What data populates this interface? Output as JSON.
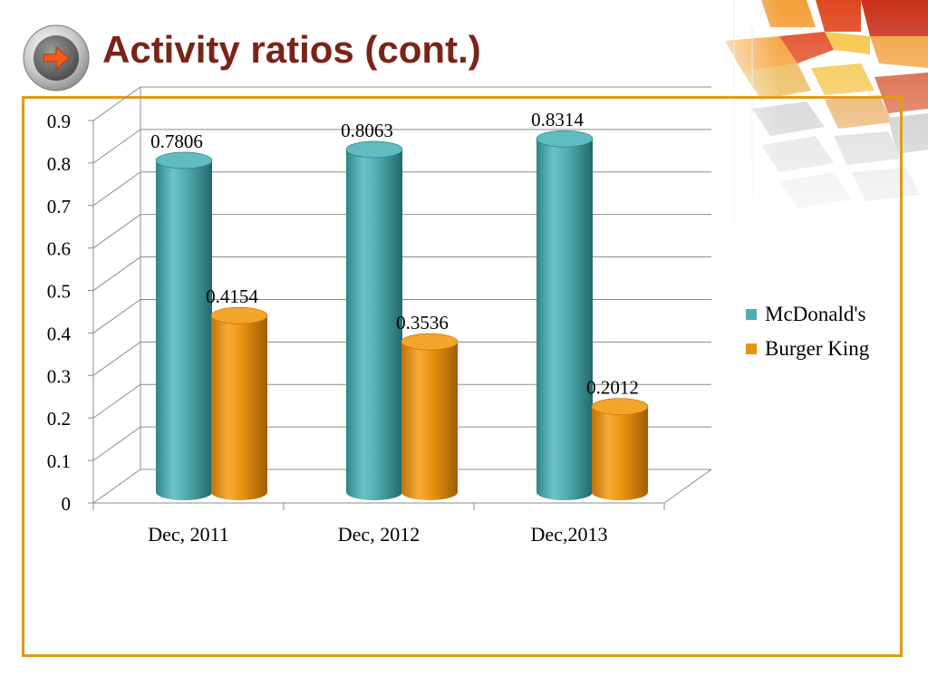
{
  "slide": {
    "title": "Activity ratios (cont.)"
  },
  "icons": {
    "nav": "arrow-right-circle-icon"
  },
  "colors": {
    "title": "#7b2318",
    "frame": "#e19a1c",
    "mcdonalds": "#4fadb0",
    "burger_king": "#e8930f"
  },
  "chart_data": {
    "type": "bar",
    "categories": [
      "Dec, 2011",
      "Dec, 2012",
      "Dec,2013"
    ],
    "series": [
      {
        "name": "McDonald's",
        "values": [
          0.7806,
          0.8063,
          0.8314
        ],
        "labels": [
          "0.7806",
          "0.8063",
          "0.8314"
        ],
        "color": "#4fadb0"
      },
      {
        "name": "Burger King",
        "values": [
          0.4154,
          0.3536,
          0.2012
        ],
        "labels": [
          "0.4154",
          "0.3536",
          "0.2012"
        ],
        "color": "#e8930f"
      }
    ],
    "yticks": [
      "0",
      "0.1",
      "0.2",
      "0.3",
      "0.4",
      "0.5",
      "0.6",
      "0.7",
      "0.8",
      "0.9"
    ],
    "ylim": [
      0,
      0.9
    ],
    "grid": true,
    "style": "3d-cylinder",
    "legend_position": "right"
  }
}
